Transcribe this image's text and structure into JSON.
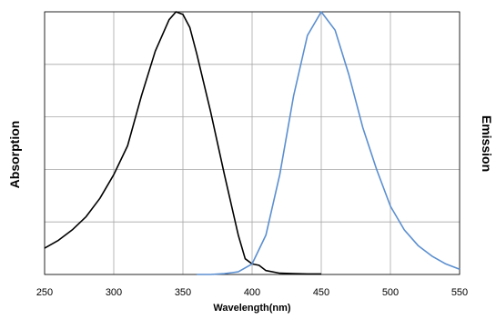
{
  "chart_data": {
    "type": "line",
    "title": "",
    "xlabel": "Wavelength(nm)",
    "ylabel_left": "Absorption",
    "ylabel_right": "Emission",
    "xlim": [
      250,
      550
    ],
    "ylim": [
      0,
      1
    ],
    "x_ticks": [
      250,
      300,
      350,
      400,
      450,
      500,
      550
    ],
    "y_ticks": [
      0,
      0.2,
      0.4,
      0.6,
      0.8,
      1.0
    ],
    "y_tick_labels_shown": false,
    "grid": true,
    "series": [
      {
        "name": "",
        "color": "#000000",
        "x": [
          250,
          260,
          270,
          280,
          290,
          300,
          310,
          320,
          330,
          340,
          345,
          350,
          355,
          360,
          370,
          380,
          390,
          395,
          400,
          405,
          410,
          420,
          430,
          440,
          450
        ],
        "y": [
          0.1,
          0.13,
          0.17,
          0.22,
          0.29,
          0.38,
          0.49,
          0.68,
          0.85,
          0.97,
          1.0,
          0.99,
          0.94,
          0.84,
          0.62,
          0.38,
          0.15,
          0.06,
          0.04,
          0.035,
          0.015,
          0.005,
          0.003,
          0.002,
          0.002
        ]
      },
      {
        "name": "",
        "color": "#5B8FD0",
        "x": [
          360,
          370,
          380,
          390,
          400,
          410,
          420,
          430,
          440,
          450,
          460,
          470,
          480,
          490,
          500,
          510,
          520,
          530,
          540,
          550
        ],
        "y": [
          0.0,
          0.0,
          0.003,
          0.01,
          0.04,
          0.15,
          0.38,
          0.68,
          0.91,
          1.0,
          0.93,
          0.76,
          0.56,
          0.4,
          0.26,
          0.17,
          0.11,
          0.07,
          0.04,
          0.02
        ]
      }
    ]
  }
}
